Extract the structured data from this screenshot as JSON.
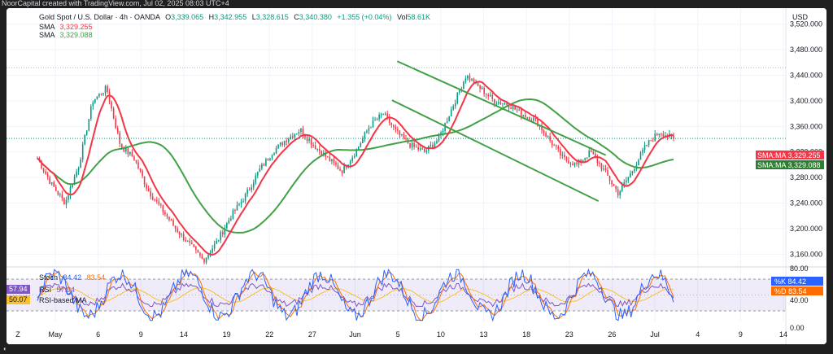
{
  "window": {
    "caption": "NoorCapital created with TradingView.com, Jul 02, 2025 08:03 UTC+4"
  },
  "legend": {
    "symbol": "Gold Spot / U.S. Dollar · 4h · OANDA",
    "o_label": "O",
    "o": "3,339.065",
    "h_label": "H",
    "h": "3,342.955",
    "l_label": "L",
    "l": "3,328.615",
    "c_label": "C",
    "c": "3,340.380",
    "change": "+1.355 (+0.04%)",
    "vol_label": "Vol",
    "vol": "58.61K",
    "sma1_label": "SMA",
    "sma1": "3,329.255",
    "sma2_label": "SMA",
    "sma2": "3,329.088",
    "stoch_label": "Stoch",
    "stoch_k": "84.42",
    "stoch_d": "83.54",
    "rsi_label": "RSI",
    "rsi": "57.94",
    "rsi_ma_label": "RSI-based MA",
    "rsi_ma": "50.07"
  },
  "price_scale": {
    "currency": "USD",
    "ticks": [
      "3,520.000",
      "3,480.000",
      "3,440.000",
      "3,400.000",
      "3,360.000",
      "3,320.000",
      "3,280.000",
      "3,240.000",
      "3,200.000",
      "3,160.000"
    ],
    "badges": [
      {
        "label": "SMA:MA",
        "value": "3,329.255",
        "color": "#f23645"
      },
      {
        "label": "SMA:MA",
        "value": "3,329.088",
        "color": "#2e7d32"
      }
    ]
  },
  "osc_scale": {
    "ticks": [
      "80.00",
      "40.00",
      "0.00"
    ],
    "badges": [
      {
        "label": "%K",
        "value": "84.42",
        "color": "#2962ff"
      },
      {
        "label": "%D",
        "value": "83.54",
        "color": "#ff6d00"
      }
    ]
  },
  "time_axis": {
    "labels": [
      "May",
      "6",
      "9",
      "14",
      "19",
      "22",
      "27",
      "Jun",
      "5",
      "10",
      "13",
      "18",
      "23",
      "26",
      "Jul",
      "4",
      "9",
      "14"
    ]
  },
  "colors": {
    "up": "#089981",
    "down": "#f23645",
    "sma_fast": "#f23645",
    "sma_slow": "#43a047",
    "channel": "#43a047",
    "stoch_k": "#2962ff",
    "stoch_d": "#ff6d00",
    "rsi": "#7e57c2",
    "rsi_ma": "#fbc02d",
    "band": "#7e57c2"
  },
  "chart_data": [
    {
      "type": "candlestick",
      "title": "Gold Spot / U.S. Dollar · 4h · OANDA",
      "x": [
        "May",
        "6",
        "9",
        "14",
        "19",
        "22",
        "27",
        "Jun",
        "5",
        "10",
        "13",
        "18",
        "23",
        "26",
        "Jul"
      ],
      "price_waypoints": [
        3310,
        3270,
        3240,
        3300,
        3400,
        3420,
        3330,
        3310,
        3260,
        3230,
        3200,
        3175,
        3150,
        3180,
        3220,
        3250,
        3290,
        3320,
        3340,
        3355,
        3330,
        3310,
        3290,
        3320,
        3360,
        3380,
        3350,
        3330,
        3320,
        3340,
        3390,
        3440,
        3420,
        3400,
        3395,
        3380,
        3370,
        3340,
        3310,
        3300,
        3320,
        3290,
        3255,
        3290,
        3330,
        3352,
        3340
      ],
      "series": [
        {
          "name": "SMA",
          "value": 3329.255
        },
        {
          "name": "SMA",
          "value": 3329.088
        }
      ],
      "channel": {
        "upper": [
          [
            34.5,
            3462
          ],
          [
            54.5,
            3315
          ]
        ],
        "lower": [
          [
            34,
            3401
          ],
          [
            53.8,
            3243
          ]
        ]
      },
      "ylim": [
        3140,
        3540
      ],
      "grid": true
    },
    {
      "type": "line",
      "title": "Stoch",
      "series": [
        {
          "name": "%K",
          "last": 84.42
        },
        {
          "name": "%D",
          "last": 83.54
        },
        {
          "name": "RSI",
          "last": 57.94
        },
        {
          "name": "RSI-based MA",
          "last": 50.07
        }
      ],
      "bands": [
        80,
        20
      ],
      "ylim": [
        0,
        100
      ]
    }
  ]
}
